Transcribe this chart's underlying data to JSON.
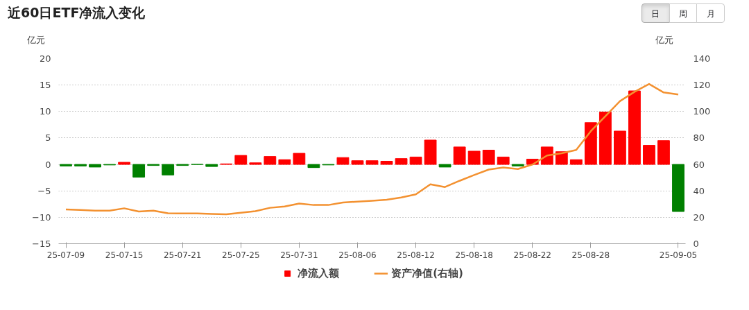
{
  "chart_data": {
    "type": "bar",
    "title": "近60日ETF净流入变化",
    "annotations": [
      "日",
      "周",
      "月"
    ],
    "categories": [
      "25-07-09",
      null,
      null,
      null,
      "25-07-15",
      null,
      null,
      null,
      "25-07-21",
      null,
      null,
      null,
      "25-07-25",
      null,
      null,
      null,
      "25-07-31",
      null,
      null,
      null,
      "25-08-06",
      null,
      null,
      null,
      "25-08-12",
      null,
      null,
      null,
      "25-08-18",
      null,
      null,
      null,
      "25-08-22",
      null,
      null,
      null,
      "25-08-28",
      null,
      null,
      null,
      null,
      null,
      "25-09-05"
    ],
    "series": [
      {
        "name": "净流入额",
        "color": "#ff0000",
        "colors": [
          "#008000",
          "#008000",
          "#008000",
          "#008000",
          "#ff0000",
          "#008000",
          "#008000",
          "#008000",
          "#008000",
          "#008000",
          "#008000",
          "#ff0000",
          "#ff0000",
          "#ff0000",
          "#ff0000",
          "#ff0000",
          "#ff0000",
          "#008000",
          "#008000",
          "#ff0000",
          "#ff0000",
          "#ff0000",
          "#ff0000",
          "#ff0000",
          "#ff0000",
          "#ff0000",
          "#008000",
          "#ff0000",
          "#ff0000",
          "#ff0000",
          "#ff0000",
          "#008000",
          "#ff0000",
          "#ff0000",
          "#ff0000",
          "#ff0000",
          "#ff0000",
          "#ff0000",
          "#ff0000",
          "#ff0000",
          "#ff0000",
          "#ff0000",
          "#008000"
        ],
        "values": [
          -0.3,
          -0.3,
          -0.5,
          -0.1,
          0.4,
          -2.4,
          -0.2,
          -2.0,
          -0.2,
          0,
          -0.4,
          0.1,
          1.7,
          0.3,
          1.5,
          0.9,
          2.1,
          -0.6,
          -0.1,
          1.3,
          0.7,
          0.7,
          0.6,
          1.1,
          1.4,
          4.6,
          -0.5,
          3.3,
          2.5,
          2.7,
          1.4,
          -0.3,
          1.0,
          3.3,
          2.4,
          0.9,
          7.9,
          9.9,
          6.3,
          13.9,
          3.6,
          4.5,
          -8.9
        ]
      },
      {
        "name": "资产净值(右轴)",
        "type": "line",
        "axis": "y2",
        "color": "#f39130",
        "values": [
          25.9,
          25.5,
          25.0,
          25.0,
          26.8,
          24.4,
          25.0,
          23.1,
          22.9,
          22.9,
          22.5,
          22.3,
          23.5,
          24.6,
          27.2,
          28.2,
          30.4,
          29.3,
          29.3,
          31.2,
          31.9,
          32.5,
          33.3,
          35.0,
          37.4,
          45.0,
          42.9,
          47.6,
          52.0,
          56.1,
          57.7,
          56.5,
          59.9,
          66.7,
          68.4,
          70.9,
          85.1,
          96.4,
          107.8,
          114.9,
          120.8,
          114.4,
          112.9
        ]
      }
    ],
    "ylabel": "亿元",
    "y2label": "亿元",
    "ylim": [
      -15,
      20
    ],
    "yticks": [
      -15,
      -10,
      -5,
      0,
      5,
      10,
      15,
      20
    ],
    "y2lim": [
      0,
      140
    ],
    "y2ticks": [
      0,
      20,
      40,
      60,
      80,
      100,
      120,
      140
    ],
    "grid": "y",
    "legend": "bottom"
  }
}
